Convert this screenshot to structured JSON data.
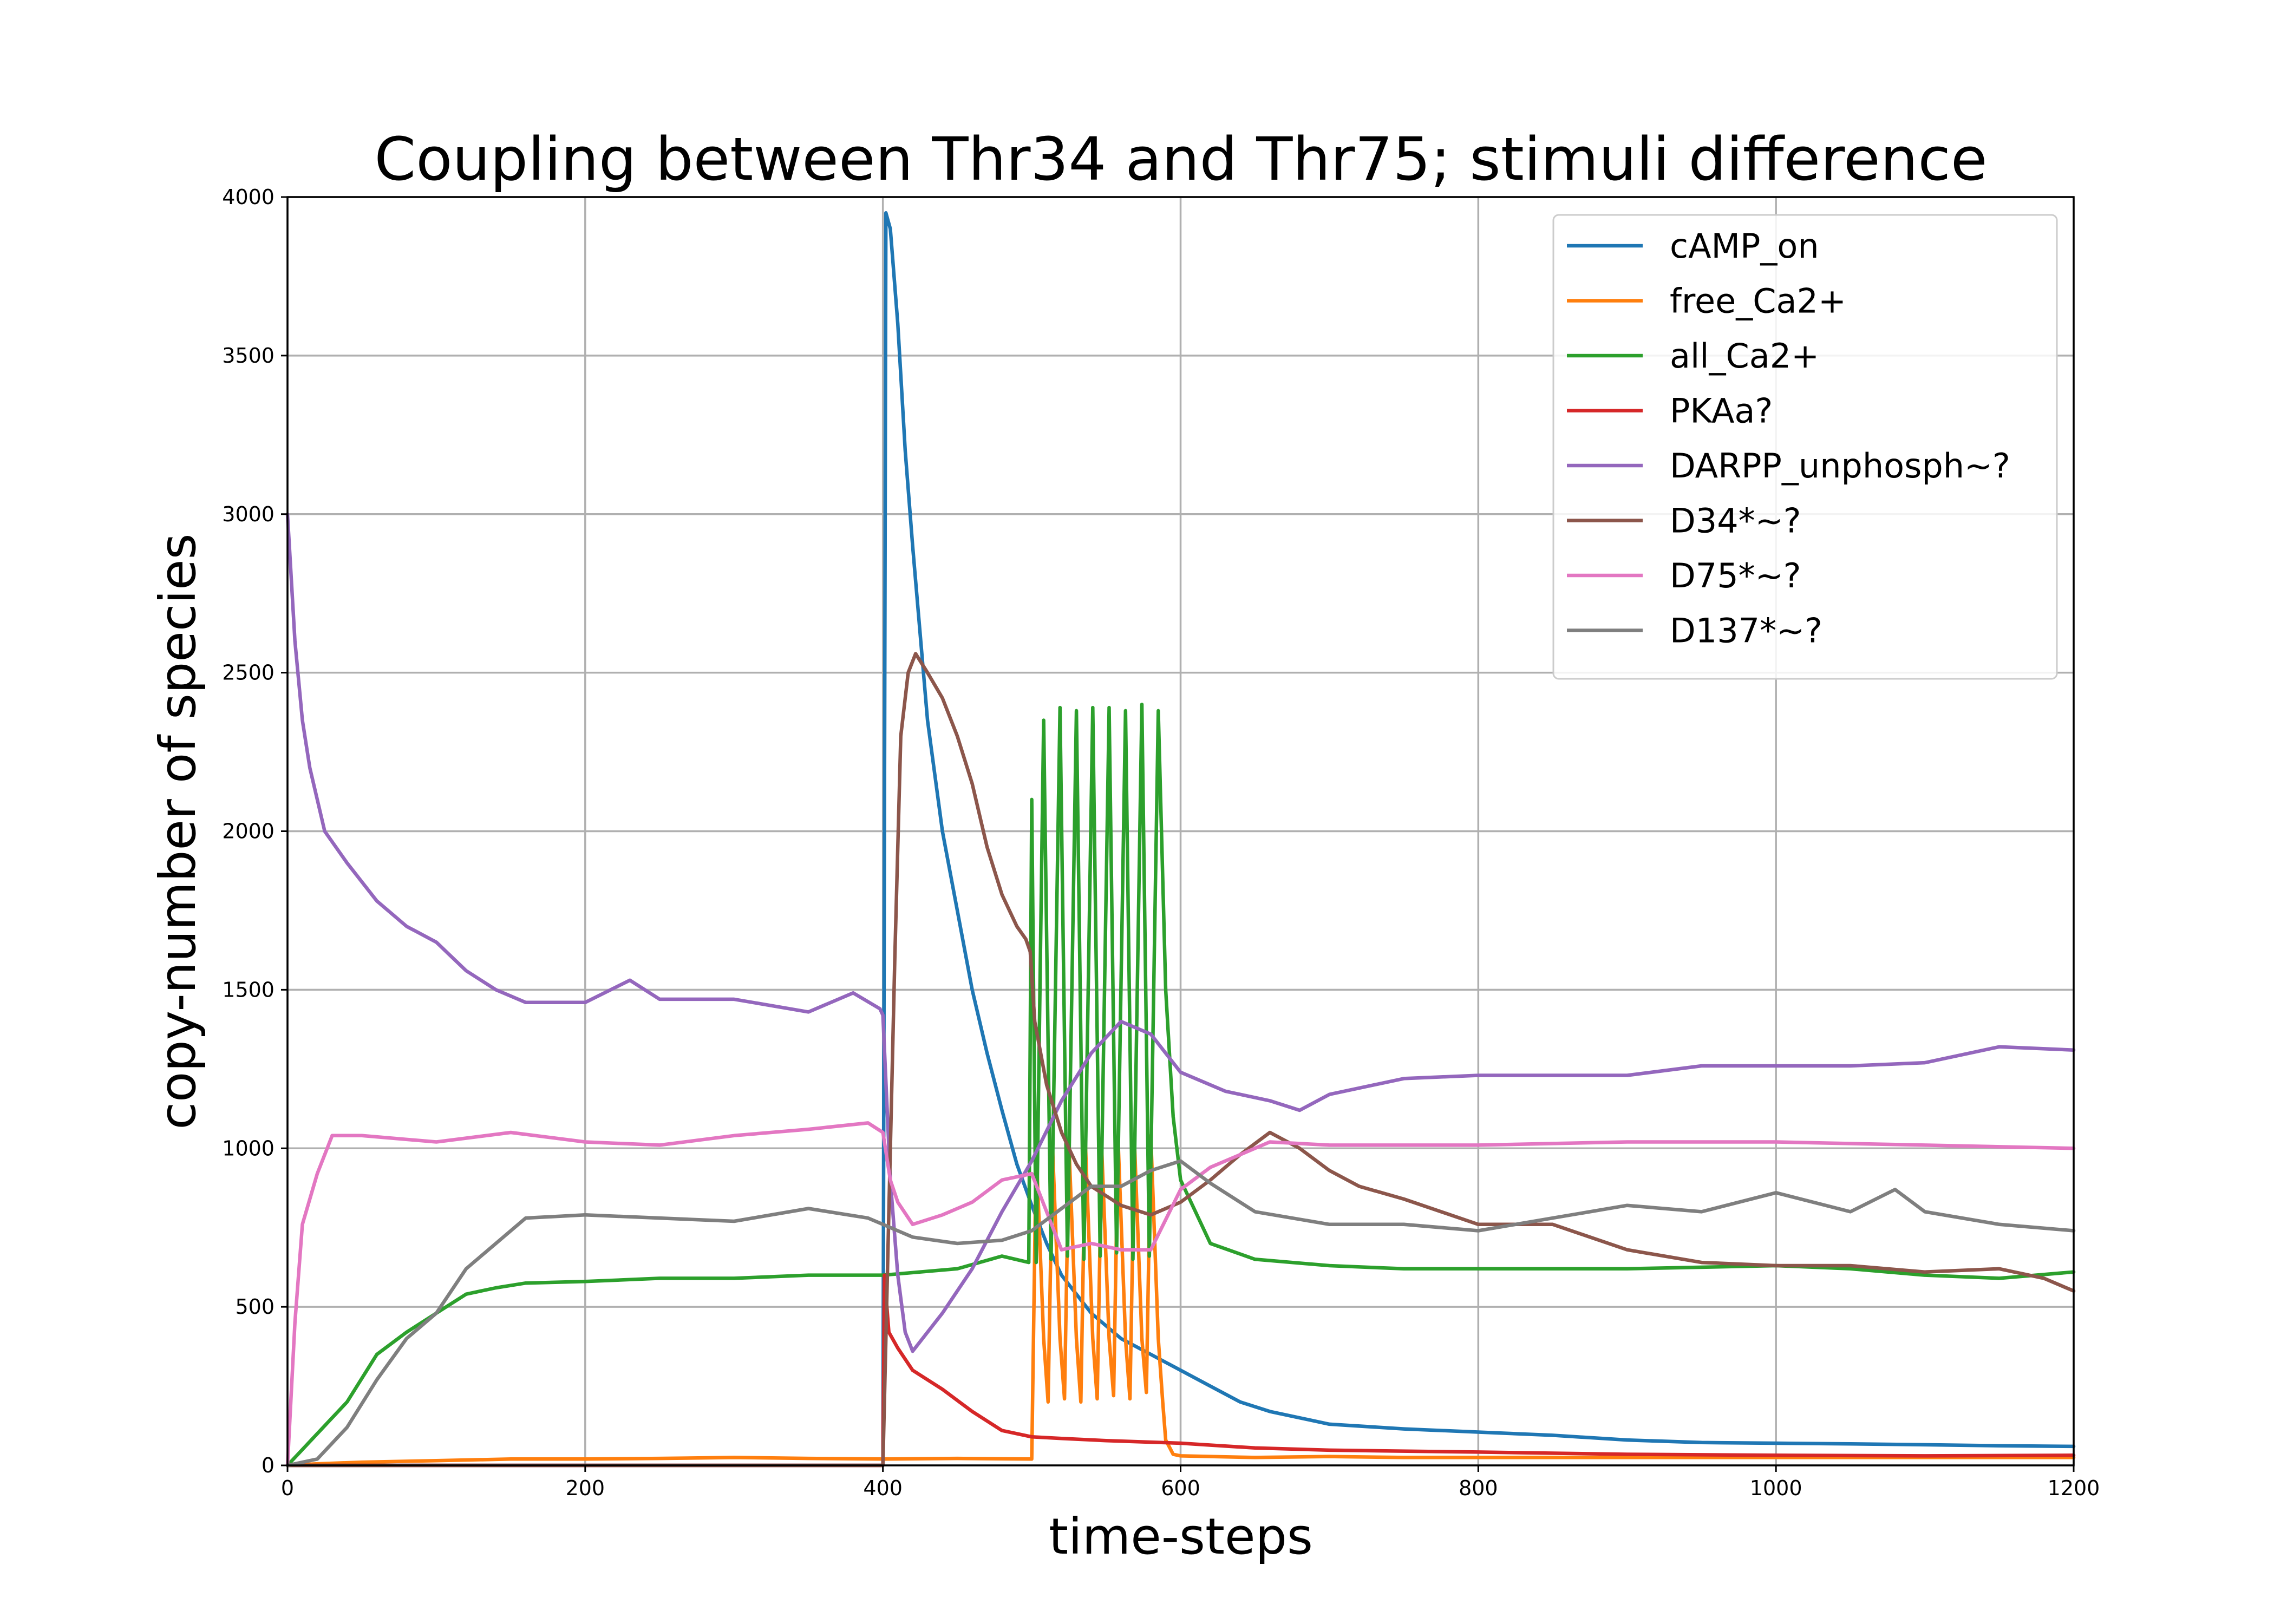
{
  "chart_data": {
    "type": "line",
    "title": "Coupling between Thr34 and Thr75; stimuli difference",
    "xlabel": "time-steps",
    "ylabel": "copy-number of species",
    "xlim": [
      0,
      1200
    ],
    "ylim": [
      0,
      4000
    ],
    "xticks": [
      0,
      200,
      400,
      600,
      800,
      1000,
      1200
    ],
    "yticks": [
      0,
      500,
      1000,
      1500,
      2000,
      2500,
      3000,
      3500,
      4000
    ],
    "grid": true,
    "legend_position": "upper right",
    "series": [
      {
        "name": "cAMP_on",
        "color": "#1f77b4",
        "points": [
          [
            0,
            0
          ],
          [
            399,
            0
          ],
          [
            400,
            0
          ],
          [
            402,
            3950
          ],
          [
            405,
            3900
          ],
          [
            410,
            3600
          ],
          [
            415,
            3200
          ],
          [
            420,
            2900
          ],
          [
            430,
            2350
          ],
          [
            440,
            2000
          ],
          [
            450,
            1750
          ],
          [
            460,
            1500
          ],
          [
            470,
            1300
          ],
          [
            480,
            1120
          ],
          [
            490,
            950
          ],
          [
            500,
            820
          ],
          [
            510,
            700
          ],
          [
            520,
            600
          ],
          [
            540,
            480
          ],
          [
            560,
            400
          ],
          [
            580,
            350
          ],
          [
            600,
            300
          ],
          [
            620,
            250
          ],
          [
            640,
            200
          ],
          [
            660,
            170
          ],
          [
            700,
            130
          ],
          [
            750,
            115
          ],
          [
            800,
            105
          ],
          [
            850,
            95
          ],
          [
            900,
            80
          ],
          [
            950,
            72
          ],
          [
            1000,
            70
          ],
          [
            1050,
            68
          ],
          [
            1100,
            65
          ],
          [
            1150,
            62
          ],
          [
            1200,
            60
          ]
        ]
      },
      {
        "name": "free_Ca2+",
        "color": "#ff7f0e",
        "points": [
          [
            0,
            0
          ],
          [
            20,
            5
          ],
          [
            50,
            10
          ],
          [
            100,
            15
          ],
          [
            150,
            20
          ],
          [
            200,
            20
          ],
          [
            250,
            22
          ],
          [
            300,
            25
          ],
          [
            350,
            22
          ],
          [
            400,
            20
          ],
          [
            450,
            22
          ],
          [
            499,
            20
          ],
          [
            500,
            20
          ],
          [
            503,
            1000
          ],
          [
            508,
            400
          ],
          [
            511,
            200
          ],
          [
            514,
            1000
          ],
          [
            519,
            400
          ],
          [
            522,
            210
          ],
          [
            525,
            1010
          ],
          [
            530,
            400
          ],
          [
            533,
            200
          ],
          [
            536,
            1020
          ],
          [
            541,
            400
          ],
          [
            544,
            210
          ],
          [
            547,
            1000
          ],
          [
            552,
            400
          ],
          [
            555,
            220
          ],
          [
            558,
            1030
          ],
          [
            563,
            400
          ],
          [
            566,
            210
          ],
          [
            569,
            1020
          ],
          [
            574,
            400
          ],
          [
            577,
            230
          ],
          [
            580,
            1040
          ],
          [
            585,
            400
          ],
          [
            588,
            200
          ],
          [
            590,
            80
          ],
          [
            595,
            35
          ],
          [
            600,
            30
          ],
          [
            650,
            25
          ],
          [
            700,
            28
          ],
          [
            750,
            25
          ],
          [
            800,
            25
          ],
          [
            900,
            25
          ],
          [
            1000,
            25
          ],
          [
            1100,
            25
          ],
          [
            1200,
            25
          ]
        ]
      },
      {
        "name": "all_Ca2+",
        "color": "#2ca02c",
        "points": [
          [
            0,
            0
          ],
          [
            20,
            100
          ],
          [
            40,
            200
          ],
          [
            60,
            350
          ],
          [
            80,
            420
          ],
          [
            100,
            480
          ],
          [
            120,
            540
          ],
          [
            140,
            560
          ],
          [
            160,
            575
          ],
          [
            200,
            580
          ],
          [
            250,
            590
          ],
          [
            300,
            590
          ],
          [
            350,
            600
          ],
          [
            400,
            600
          ],
          [
            450,
            620
          ],
          [
            480,
            660
          ],
          [
            498,
            640
          ],
          [
            500,
            2100
          ],
          [
            503,
            640
          ],
          [
            508,
            2350
          ],
          [
            513,
            650
          ],
          [
            519,
            2390
          ],
          [
            524,
            660
          ],
          [
            530,
            2380
          ],
          [
            535,
            650
          ],
          [
            541,
            2390
          ],
          [
            546,
            660
          ],
          [
            552,
            2390
          ],
          [
            557,
            670
          ],
          [
            563,
            2380
          ],
          [
            568,
            650
          ],
          [
            574,
            2400
          ],
          [
            579,
            660
          ],
          [
            585,
            2380
          ],
          [
            590,
            1500
          ],
          [
            595,
            1100
          ],
          [
            600,
            900
          ],
          [
            610,
            800
          ],
          [
            620,
            700
          ],
          [
            650,
            650
          ],
          [
            700,
            630
          ],
          [
            750,
            620
          ],
          [
            800,
            620
          ],
          [
            900,
            620
          ],
          [
            1000,
            630
          ],
          [
            1050,
            620
          ],
          [
            1100,
            600
          ],
          [
            1150,
            590
          ],
          [
            1200,
            610
          ]
        ]
      },
      {
        "name": "PKAa?",
        "color": "#d62728",
        "points": [
          [
            0,
            0
          ],
          [
            399,
            0
          ],
          [
            400,
            0
          ],
          [
            401,
            600
          ],
          [
            404,
            420
          ],
          [
            410,
            370
          ],
          [
            420,
            300
          ],
          [
            440,
            240
          ],
          [
            460,
            170
          ],
          [
            480,
            110
          ],
          [
            500,
            90
          ],
          [
            520,
            85
          ],
          [
            550,
            78
          ],
          [
            600,
            70
          ],
          [
            650,
            55
          ],
          [
            700,
            48
          ],
          [
            800,
            42
          ],
          [
            900,
            35
          ],
          [
            1000,
            32
          ],
          [
            1100,
            30
          ],
          [
            1200,
            32
          ]
        ]
      },
      {
        "name": "DARPP_unphosph~?",
        "color": "#9467bd",
        "points": [
          [
            0,
            3000
          ],
          [
            5,
            2600
          ],
          [
            10,
            2350
          ],
          [
            15,
            2200
          ],
          [
            25,
            2000
          ],
          [
            40,
            1900
          ],
          [
            60,
            1780
          ],
          [
            80,
            1700
          ],
          [
            100,
            1650
          ],
          [
            120,
            1560
          ],
          [
            140,
            1500
          ],
          [
            160,
            1460
          ],
          [
            200,
            1460
          ],
          [
            230,
            1530
          ],
          [
            250,
            1470
          ],
          [
            300,
            1470
          ],
          [
            350,
            1430
          ],
          [
            380,
            1490
          ],
          [
            398,
            1440
          ],
          [
            400,
            1420
          ],
          [
            405,
            900
          ],
          [
            410,
            600
          ],
          [
            415,
            420
          ],
          [
            420,
            360
          ],
          [
            440,
            480
          ],
          [
            460,
            620
          ],
          [
            480,
            800
          ],
          [
            500,
            960
          ],
          [
            520,
            1150
          ],
          [
            540,
            1300
          ],
          [
            560,
            1400
          ],
          [
            580,
            1360
          ],
          [
            600,
            1240
          ],
          [
            630,
            1180
          ],
          [
            660,
            1150
          ],
          [
            680,
            1120
          ],
          [
            700,
            1170
          ],
          [
            750,
            1220
          ],
          [
            800,
            1230
          ],
          [
            850,
            1230
          ],
          [
            900,
            1230
          ],
          [
            950,
            1260
          ],
          [
            1000,
            1260
          ],
          [
            1050,
            1260
          ],
          [
            1100,
            1270
          ],
          [
            1150,
            1320
          ],
          [
            1200,
            1310
          ]
        ]
      },
      {
        "name": "D34*~?",
        "color": "#8c564b",
        "points": [
          [
            0,
            0
          ],
          [
            399,
            0
          ],
          [
            400,
            0
          ],
          [
            404,
            800
          ],
          [
            408,
            1600
          ],
          [
            412,
            2300
          ],
          [
            417,
            2500
          ],
          [
            422,
            2560
          ],
          [
            430,
            2500
          ],
          [
            440,
            2420
          ],
          [
            450,
            2300
          ],
          [
            460,
            2150
          ],
          [
            470,
            1950
          ],
          [
            480,
            1800
          ],
          [
            490,
            1700
          ],
          [
            496,
            1660
          ],
          [
            499,
            1620
          ],
          [
            502,
            1400
          ],
          [
            510,
            1200
          ],
          [
            520,
            1050
          ],
          [
            530,
            950
          ],
          [
            540,
            880
          ],
          [
            560,
            820
          ],
          [
            580,
            790
          ],
          [
            600,
            830
          ],
          [
            620,
            900
          ],
          [
            640,
            980
          ],
          [
            660,
            1050
          ],
          [
            680,
            1000
          ],
          [
            700,
            930
          ],
          [
            720,
            880
          ],
          [
            750,
            840
          ],
          [
            800,
            760
          ],
          [
            850,
            760
          ],
          [
            900,
            680
          ],
          [
            950,
            640
          ],
          [
            1000,
            630
          ],
          [
            1050,
            630
          ],
          [
            1100,
            610
          ],
          [
            1150,
            620
          ],
          [
            1180,
            590
          ],
          [
            1200,
            550
          ]
        ]
      },
      {
        "name": "D75*~?",
        "color": "#e377c2",
        "points": [
          [
            0,
            0
          ],
          [
            5,
            450
          ],
          [
            10,
            760
          ],
          [
            20,
            920
          ],
          [
            30,
            1040
          ],
          [
            50,
            1040
          ],
          [
            100,
            1020
          ],
          [
            150,
            1050
          ],
          [
            200,
            1020
          ],
          [
            250,
            1010
          ],
          [
            300,
            1040
          ],
          [
            350,
            1060
          ],
          [
            390,
            1080
          ],
          [
            400,
            1050
          ],
          [
            405,
            900
          ],
          [
            410,
            830
          ],
          [
            420,
            760
          ],
          [
            440,
            790
          ],
          [
            460,
            830
          ],
          [
            480,
            900
          ],
          [
            500,
            920
          ],
          [
            520,
            680
          ],
          [
            540,
            700
          ],
          [
            560,
            680
          ],
          [
            580,
            680
          ],
          [
            600,
            870
          ],
          [
            620,
            940
          ],
          [
            640,
            980
          ],
          [
            660,
            1020
          ],
          [
            700,
            1010
          ],
          [
            800,
            1010
          ],
          [
            900,
            1020
          ],
          [
            1000,
            1020
          ],
          [
            1100,
            1010
          ],
          [
            1200,
            1000
          ]
        ]
      },
      {
        "name": "D137*~?",
        "color": "#7f7f7f",
        "points": [
          [
            0,
            0
          ],
          [
            20,
            20
          ],
          [
            40,
            120
          ],
          [
            60,
            270
          ],
          [
            80,
            400
          ],
          [
            100,
            480
          ],
          [
            120,
            620
          ],
          [
            140,
            700
          ],
          [
            160,
            780
          ],
          [
            200,
            790
          ],
          [
            250,
            780
          ],
          [
            300,
            770
          ],
          [
            350,
            810
          ],
          [
            390,
            780
          ],
          [
            400,
            760
          ],
          [
            420,
            720
          ],
          [
            450,
            700
          ],
          [
            480,
            710
          ],
          [
            500,
            740
          ],
          [
            520,
            810
          ],
          [
            540,
            880
          ],
          [
            560,
            880
          ],
          [
            580,
            930
          ],
          [
            600,
            960
          ],
          [
            620,
            890
          ],
          [
            650,
            800
          ],
          [
            700,
            760
          ],
          [
            750,
            760
          ],
          [
            800,
            740
          ],
          [
            850,
            780
          ],
          [
            900,
            820
          ],
          [
            950,
            800
          ],
          [
            1000,
            860
          ],
          [
            1050,
            800
          ],
          [
            1080,
            870
          ],
          [
            1100,
            800
          ],
          [
            1150,
            760
          ],
          [
            1200,
            740
          ]
        ]
      }
    ]
  }
}
